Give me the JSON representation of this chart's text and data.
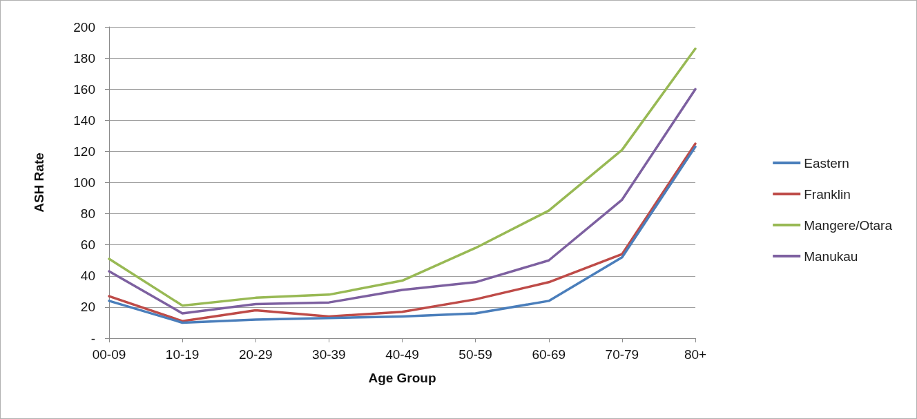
{
  "chart_data": {
    "type": "line",
    "xlabel": "Age Group",
    "ylabel": "ASH Rate",
    "categories": [
      "00-09",
      "10-19",
      "20-29",
      "30-39",
      "40-49",
      "50-59",
      "60-69",
      "70-79",
      "80+"
    ],
    "series": [
      {
        "name": "Eastern",
        "color": "#4a7ebb",
        "values": [
          24,
          10,
          12,
          13,
          14,
          16,
          24,
          52,
          123
        ]
      },
      {
        "name": "Franklin",
        "color": "#be4b48",
        "values": [
          27,
          11,
          18,
          14,
          17,
          25,
          36,
          54,
          125
        ]
      },
      {
        "name": "Mangere/Otara",
        "color": "#98b954",
        "values": [
          51,
          21,
          26,
          28,
          37,
          58,
          82,
          121,
          186
        ]
      },
      {
        "name": "Manukau",
        "color": "#7d60a0",
        "values": [
          43,
          16,
          22,
          23,
          31,
          36,
          50,
          89,
          160
        ]
      }
    ],
    "ylim": [
      0,
      200
    ],
    "yticks": [
      {
        "value": 0,
        "label": "-"
      },
      20,
      40,
      60,
      80,
      100,
      120,
      140,
      160,
      180,
      200
    ],
    "grid": "y",
    "legend": "right",
    "marker": "none",
    "line_style": "solid"
  }
}
